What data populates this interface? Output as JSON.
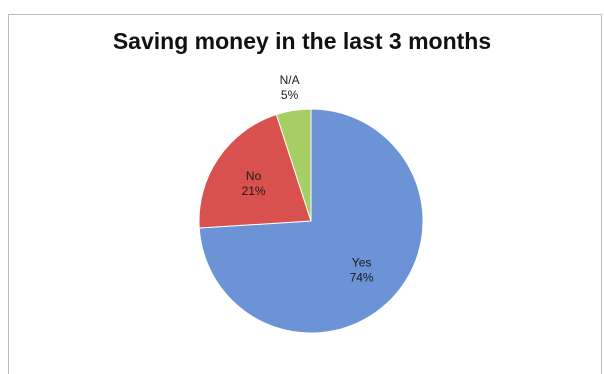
{
  "chart_data": {
    "type": "pie",
    "title": "Saving money in the last 3 months",
    "slices": [
      {
        "label": "Yes",
        "value": 74,
        "value_label": "74%",
        "color": "#6b93d6"
      },
      {
        "label": "No",
        "value": 21,
        "value_label": "21%",
        "color": "#d9514e"
      },
      {
        "label": "N/A",
        "value": 5,
        "value_label": "5%",
        "color": "#a7ce64"
      }
    ],
    "start": "12 o'clock",
    "direction": "clockwise",
    "legend": "none"
  }
}
